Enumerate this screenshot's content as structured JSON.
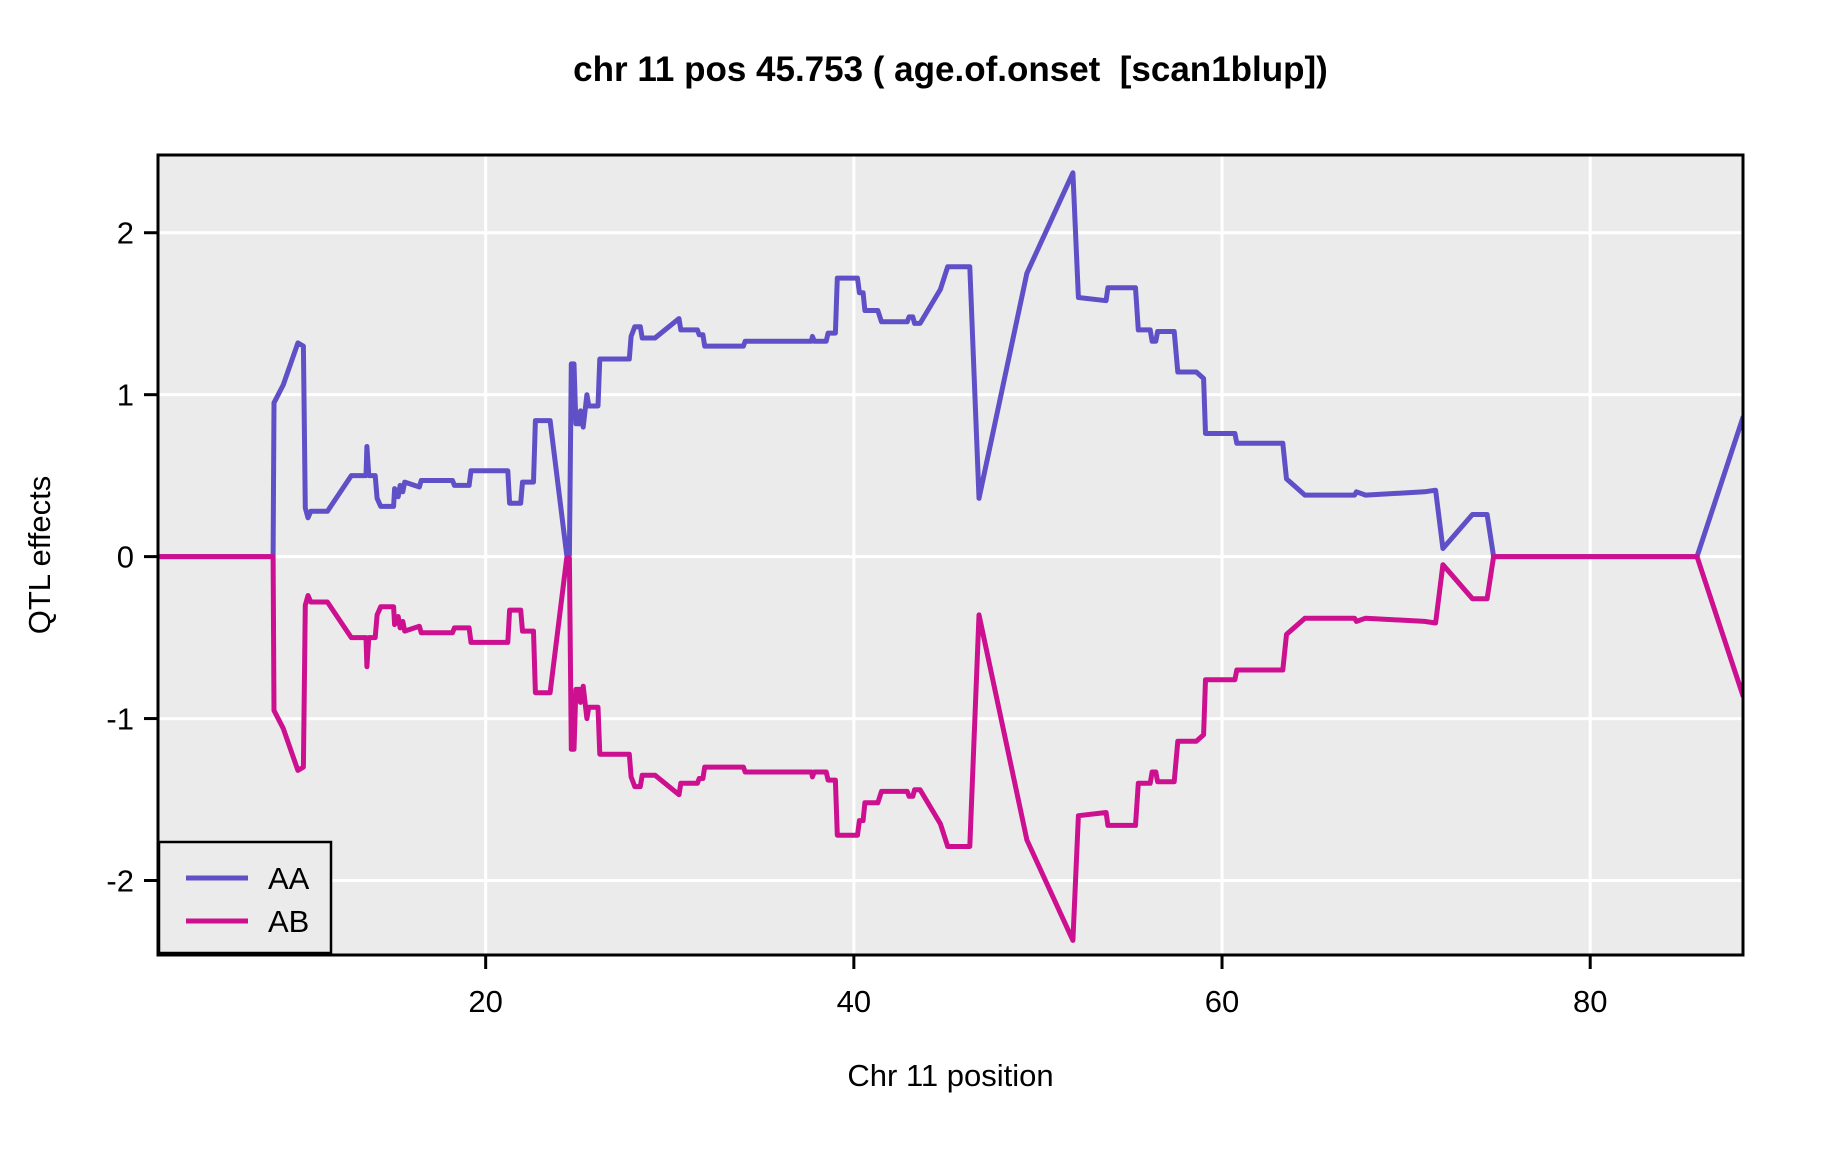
{
  "chart_data": {
    "type": "line",
    "title": "chr 11 pos 45.753 ( age.of.onset  [scan1blup])",
    "xlabel": "Chr 11 position",
    "ylabel": "QTL effects",
    "xlim": [
      2.2,
      88.3
    ],
    "ylim": [
      -2.46,
      2.48
    ],
    "x_ticks": [
      20,
      40,
      60,
      80
    ],
    "y_ticks": [
      2,
      1,
      0,
      -1,
      -2
    ],
    "grid": "white gridlines on gray panel",
    "legend_position": "bottom-left",
    "colors": {
      "panel_bg": "#EBEBEB",
      "grid": "#FFFFFF",
      "border": "#000000",
      "aa_line": "#5F50C7",
      "ab_line": "#CC1090"
    },
    "series": [
      {
        "name": "AA",
        "color": "#5F50C7",
        "points": [
          [
            2.2,
            0
          ],
          [
            8.45,
            0
          ],
          [
            8.5,
            0.95
          ],
          [
            9.0,
            1.06
          ],
          [
            9.8,
            1.32
          ],
          [
            10.1,
            1.3
          ],
          [
            10.2,
            0.3
          ],
          [
            10.35,
            0.24
          ],
          [
            10.5,
            0.28
          ],
          [
            11.4,
            0.28
          ],
          [
            12.7,
            0.5
          ],
          [
            13.5,
            0.5
          ],
          [
            13.55,
            0.68
          ],
          [
            13.65,
            0.5
          ],
          [
            14.0,
            0.5
          ],
          [
            14.1,
            0.36
          ],
          [
            14.3,
            0.31
          ],
          [
            15.0,
            0.31
          ],
          [
            15.05,
            0.42
          ],
          [
            15.25,
            0.37
          ],
          [
            15.35,
            0.44
          ],
          [
            15.5,
            0.4
          ],
          [
            15.6,
            0.46
          ],
          [
            16.4,
            0.43
          ],
          [
            16.5,
            0.47
          ],
          [
            18.2,
            0.47
          ],
          [
            18.3,
            0.44
          ],
          [
            19.1,
            0.44
          ],
          [
            19.2,
            0.53
          ],
          [
            21.2,
            0.53
          ],
          [
            21.3,
            0.33
          ],
          [
            21.9,
            0.33
          ],
          [
            22.0,
            0.46
          ],
          [
            22.6,
            0.46
          ],
          [
            22.7,
            0.84
          ],
          [
            23.5,
            0.84
          ],
          [
            24.4,
            0.01
          ],
          [
            24.55,
            0.01
          ],
          [
            24.65,
            1.19
          ],
          [
            24.8,
            1.19
          ],
          [
            24.9,
            0.82
          ],
          [
            25.1,
            0.82
          ],
          [
            25.15,
            0.9
          ],
          [
            25.3,
            0.8
          ],
          [
            25.5,
            1.0
          ],
          [
            25.6,
            0.93
          ],
          [
            26.1,
            0.93
          ],
          [
            26.2,
            1.22
          ],
          [
            27.8,
            1.22
          ],
          [
            27.9,
            1.36
          ],
          [
            28.1,
            1.42
          ],
          [
            28.4,
            1.42
          ],
          [
            28.5,
            1.35
          ],
          [
            29.2,
            1.35
          ],
          [
            30.5,
            1.47
          ],
          [
            30.6,
            1.4
          ],
          [
            31.5,
            1.4
          ],
          [
            31.6,
            1.37
          ],
          [
            31.8,
            1.37
          ],
          [
            31.9,
            1.3
          ],
          [
            34.0,
            1.3
          ],
          [
            34.1,
            1.33
          ],
          [
            37.7,
            1.33
          ],
          [
            37.75,
            1.36
          ],
          [
            37.85,
            1.33
          ],
          [
            38.5,
            1.33
          ],
          [
            38.6,
            1.38
          ],
          [
            39.0,
            1.38
          ],
          [
            39.1,
            1.72
          ],
          [
            40.2,
            1.72
          ],
          [
            40.3,
            1.63
          ],
          [
            40.5,
            1.63
          ],
          [
            40.6,
            1.52
          ],
          [
            41.3,
            1.52
          ],
          [
            41.5,
            1.45
          ],
          [
            42.9,
            1.45
          ],
          [
            43.0,
            1.48
          ],
          [
            43.2,
            1.48
          ],
          [
            43.3,
            1.44
          ],
          [
            43.6,
            1.44
          ],
          [
            44.7,
            1.65
          ],
          [
            45.1,
            1.79
          ],
          [
            46.3,
            1.79
          ],
          [
            46.8,
            0.36
          ],
          [
            49.4,
            1.75
          ],
          [
            51.9,
            2.37
          ],
          [
            52.2,
            1.6
          ],
          [
            53.7,
            1.58
          ],
          [
            53.8,
            1.66
          ],
          [
            55.3,
            1.66
          ],
          [
            55.45,
            1.4
          ],
          [
            56.1,
            1.4
          ],
          [
            56.2,
            1.33
          ],
          [
            56.4,
            1.33
          ],
          [
            56.5,
            1.39
          ],
          [
            57.4,
            1.39
          ],
          [
            57.6,
            1.14
          ],
          [
            58.6,
            1.14
          ],
          [
            59.0,
            1.1
          ],
          [
            59.1,
            0.76
          ],
          [
            60.7,
            0.76
          ],
          [
            60.8,
            0.7
          ],
          [
            63.3,
            0.7
          ],
          [
            63.5,
            0.48
          ],
          [
            64.5,
            0.38
          ],
          [
            67.2,
            0.38
          ],
          [
            67.3,
            0.4
          ],
          [
            67.8,
            0.38
          ],
          [
            71.0,
            0.4
          ],
          [
            71.6,
            0.41
          ],
          [
            72.0,
            0.05
          ],
          [
            73.6,
            0.26
          ],
          [
            74.4,
            0.26
          ],
          [
            74.75,
            0
          ],
          [
            85.8,
            0
          ],
          [
            88.3,
            0.86
          ]
        ]
      },
      {
        "name": "AB",
        "color": "#CC1090",
        "points": [
          [
            2.2,
            0
          ],
          [
            8.45,
            0
          ],
          [
            8.5,
            -0.95
          ],
          [
            9.0,
            -1.06
          ],
          [
            9.8,
            -1.32
          ],
          [
            10.1,
            -1.3
          ],
          [
            10.2,
            -0.3
          ],
          [
            10.35,
            -0.24
          ],
          [
            10.5,
            -0.28
          ],
          [
            11.4,
            -0.28
          ],
          [
            12.7,
            -0.5
          ],
          [
            13.5,
            -0.5
          ],
          [
            13.55,
            -0.68
          ],
          [
            13.65,
            -0.5
          ],
          [
            14.0,
            -0.5
          ],
          [
            14.1,
            -0.36
          ],
          [
            14.3,
            -0.31
          ],
          [
            15.0,
            -0.31
          ],
          [
            15.05,
            -0.42
          ],
          [
            15.25,
            -0.37
          ],
          [
            15.35,
            -0.44
          ],
          [
            15.5,
            -0.4
          ],
          [
            15.6,
            -0.46
          ],
          [
            16.4,
            -0.43
          ],
          [
            16.5,
            -0.47
          ],
          [
            18.2,
            -0.47
          ],
          [
            18.3,
            -0.44
          ],
          [
            19.1,
            -0.44
          ],
          [
            19.2,
            -0.53
          ],
          [
            21.2,
            -0.53
          ],
          [
            21.3,
            -0.33
          ],
          [
            21.9,
            -0.33
          ],
          [
            22.0,
            -0.46
          ],
          [
            22.6,
            -0.46
          ],
          [
            22.7,
            -0.84
          ],
          [
            23.5,
            -0.84
          ],
          [
            24.4,
            -0.01
          ],
          [
            24.55,
            -0.01
          ],
          [
            24.65,
            -1.19
          ],
          [
            24.8,
            -1.19
          ],
          [
            24.9,
            -0.82
          ],
          [
            25.1,
            -0.82
          ],
          [
            25.15,
            -0.9
          ],
          [
            25.3,
            -0.8
          ],
          [
            25.5,
            -1.0
          ],
          [
            25.6,
            -0.93
          ],
          [
            26.1,
            -0.93
          ],
          [
            26.2,
            -1.22
          ],
          [
            27.8,
            -1.22
          ],
          [
            27.9,
            -1.36
          ],
          [
            28.1,
            -1.42
          ],
          [
            28.4,
            -1.42
          ],
          [
            28.5,
            -1.35
          ],
          [
            29.2,
            -1.35
          ],
          [
            30.5,
            -1.47
          ],
          [
            30.6,
            -1.4
          ],
          [
            31.5,
            -1.4
          ],
          [
            31.6,
            -1.37
          ],
          [
            31.8,
            -1.37
          ],
          [
            31.9,
            -1.3
          ],
          [
            34.0,
            -1.3
          ],
          [
            34.1,
            -1.33
          ],
          [
            37.7,
            -1.33
          ],
          [
            37.75,
            -1.36
          ],
          [
            37.85,
            -1.33
          ],
          [
            38.5,
            -1.33
          ],
          [
            38.6,
            -1.38
          ],
          [
            39.0,
            -1.38
          ],
          [
            39.1,
            -1.72
          ],
          [
            40.2,
            -1.72
          ],
          [
            40.3,
            -1.63
          ],
          [
            40.5,
            -1.63
          ],
          [
            40.6,
            -1.52
          ],
          [
            41.3,
            -1.52
          ],
          [
            41.5,
            -1.45
          ],
          [
            42.9,
            -1.45
          ],
          [
            43.0,
            -1.48
          ],
          [
            43.2,
            -1.48
          ],
          [
            43.3,
            -1.44
          ],
          [
            43.6,
            -1.44
          ],
          [
            44.7,
            -1.65
          ],
          [
            45.1,
            -1.79
          ],
          [
            46.3,
            -1.79
          ],
          [
            46.8,
            -0.36
          ],
          [
            49.4,
            -1.75
          ],
          [
            51.9,
            -2.37
          ],
          [
            52.2,
            -1.6
          ],
          [
            53.7,
            -1.58
          ],
          [
            53.8,
            -1.66
          ],
          [
            55.3,
            -1.66
          ],
          [
            55.45,
            -1.4
          ],
          [
            56.1,
            -1.4
          ],
          [
            56.2,
            -1.33
          ],
          [
            56.4,
            -1.33
          ],
          [
            56.5,
            -1.39
          ],
          [
            57.4,
            -1.39
          ],
          [
            57.6,
            -1.14
          ],
          [
            58.6,
            -1.14
          ],
          [
            59.0,
            -1.1
          ],
          [
            59.1,
            -0.76
          ],
          [
            60.7,
            -0.76
          ],
          [
            60.8,
            -0.7
          ],
          [
            63.3,
            -0.7
          ],
          [
            63.5,
            -0.48
          ],
          [
            64.5,
            -0.38
          ],
          [
            67.2,
            -0.38
          ],
          [
            67.3,
            -0.4
          ],
          [
            67.8,
            -0.38
          ],
          [
            71.0,
            -0.4
          ],
          [
            71.6,
            -0.41
          ],
          [
            72.0,
            -0.05
          ],
          [
            73.6,
            -0.26
          ],
          [
            74.4,
            -0.26
          ],
          [
            74.75,
            0
          ],
          [
            85.8,
            0
          ],
          [
            88.3,
            -0.86
          ]
        ]
      }
    ]
  }
}
